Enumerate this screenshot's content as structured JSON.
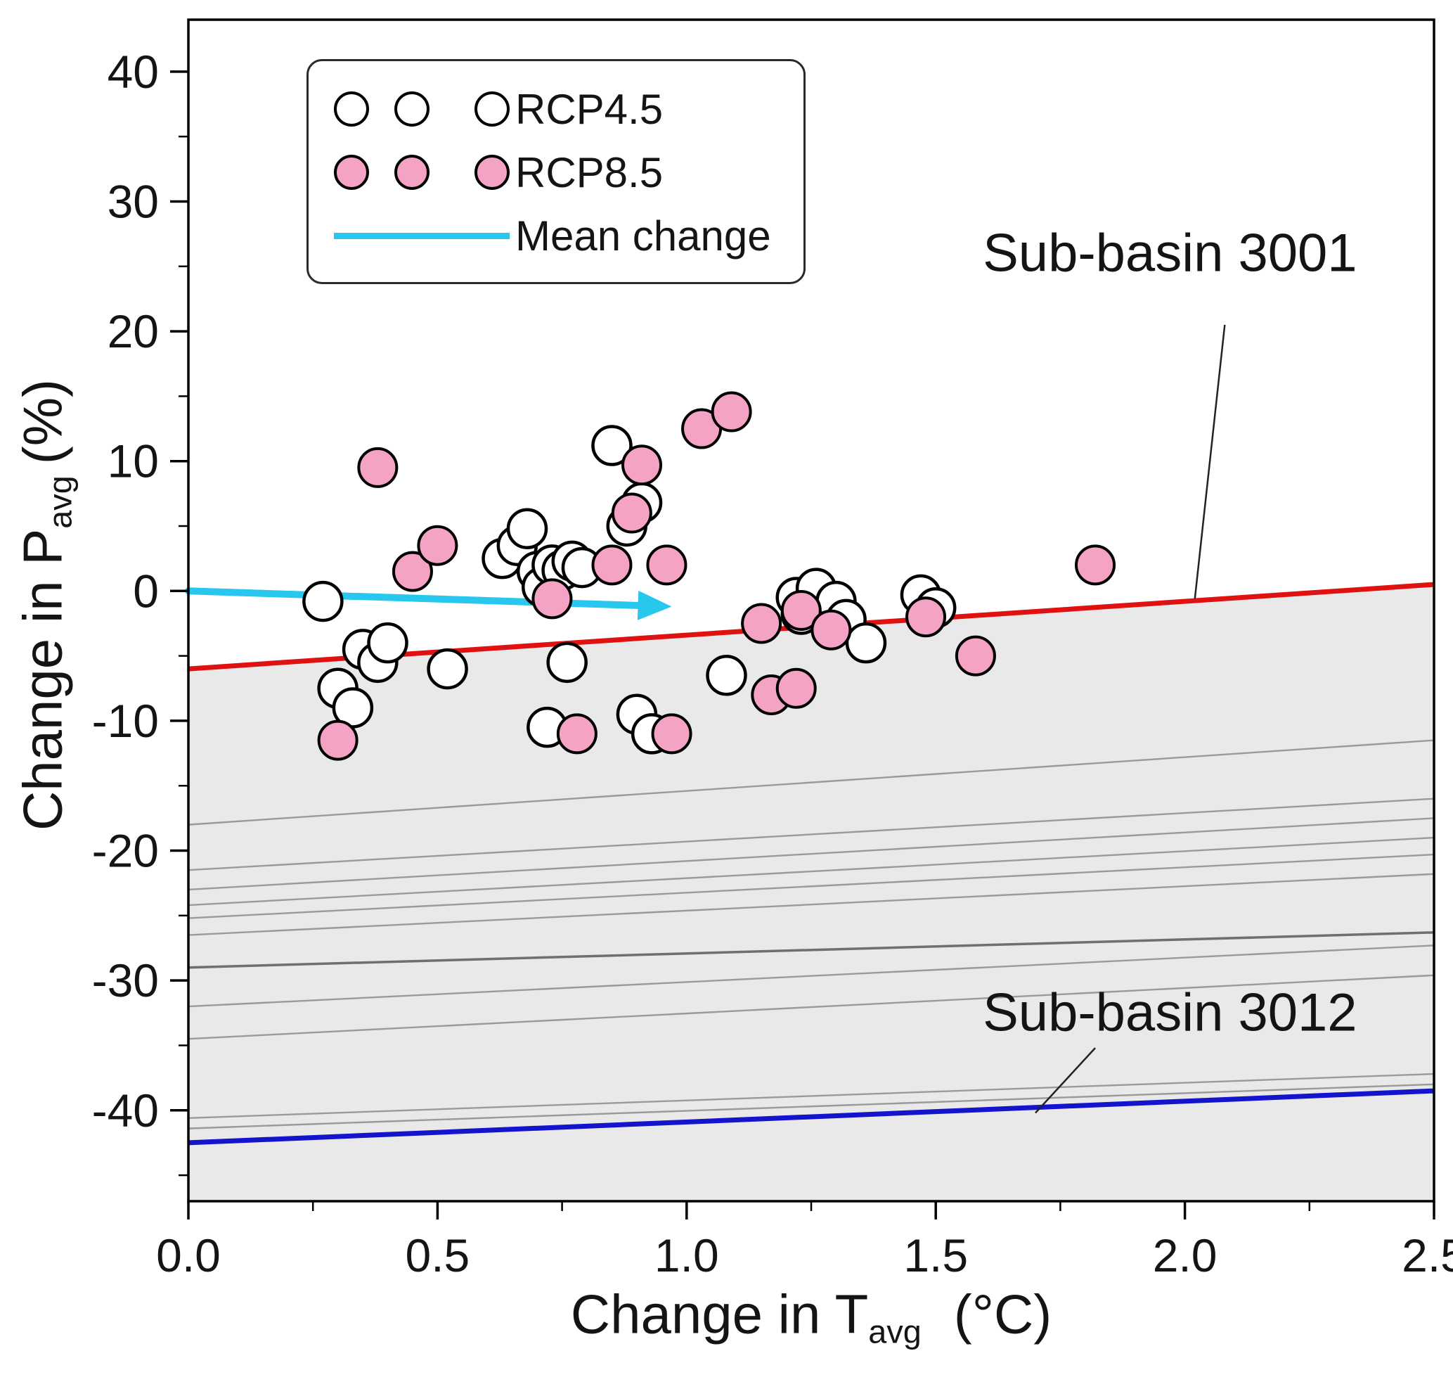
{
  "chart_data": {
    "type": "scatter",
    "title": "",
    "xlabel": {
      "main": "Change in T",
      "sub": "avg",
      "unit": "(°C)"
    },
    "ylabel": {
      "main": "Change in P",
      "sub": "avg",
      "unit": "(%)"
    },
    "xlim": [
      0.0,
      2.5
    ],
    "ylim": [
      -47,
      44
    ],
    "xticks": [
      0.0,
      0.5,
      1.0,
      1.5,
      2.0,
      2.5
    ],
    "xtick_labels": [
      "0.0",
      "0.5",
      "1.0",
      "1.5",
      "2.0",
      "2.5"
    ],
    "x_minor_ticks": [
      0.25,
      0.75,
      1.25,
      1.75,
      2.25
    ],
    "yticks": [
      -40,
      -30,
      -20,
      -10,
      0,
      10,
      20,
      30,
      40
    ],
    "ytick_labels": [
      "-40",
      "-30",
      "-20",
      "-10",
      "0",
      "10",
      "20",
      "30",
      "40"
    ],
    "y_minor_ticks": [
      -45,
      -35,
      -25,
      -15,
      -5,
      5,
      15,
      25,
      35
    ],
    "grid": false,
    "legend_position": "upper-left",
    "marker_radius_px": 27,
    "series": [
      {
        "id": "rcp45",
        "name": "RCP4.5",
        "marker": "open-circle",
        "fill": "#ffffff",
        "stroke": "#000000",
        "stroke_width": 4.5,
        "points": [
          [
            0.27,
            -0.8
          ],
          [
            0.3,
            -7.5
          ],
          [
            0.33,
            -9.0
          ],
          [
            0.35,
            -4.5
          ],
          [
            0.38,
            -5.5
          ],
          [
            0.4,
            -4.0
          ],
          [
            0.52,
            -6.0
          ],
          [
            0.63,
            2.5
          ],
          [
            0.66,
            3.5
          ],
          [
            0.68,
            4.8
          ],
          [
            0.7,
            1.5
          ],
          [
            0.71,
            0.3
          ],
          [
            0.73,
            2.0
          ],
          [
            0.75,
            1.6
          ],
          [
            0.77,
            2.3
          ],
          [
            0.79,
            1.8
          ],
          [
            0.76,
            -5.5
          ],
          [
            0.72,
            -10.5
          ],
          [
            0.85,
            11.2
          ],
          [
            0.88,
            5.0
          ],
          [
            0.91,
            6.8
          ],
          [
            0.9,
            -9.5
          ],
          [
            0.93,
            -11.0
          ],
          [
            1.08,
            -6.5
          ],
          [
            1.22,
            -0.5
          ],
          [
            1.23,
            -1.8
          ],
          [
            1.26,
            0.2
          ],
          [
            1.3,
            -0.8
          ],
          [
            1.32,
            -2.2
          ],
          [
            1.36,
            -4.0
          ],
          [
            1.47,
            -0.3
          ],
          [
            1.5,
            -1.3
          ]
        ]
      },
      {
        "id": "rcp85",
        "name": "RCP8.5",
        "marker": "filled-circle",
        "fill": "#f4a3c4",
        "stroke": "#000000",
        "stroke_width": 4,
        "points": [
          [
            0.3,
            -11.5
          ],
          [
            0.38,
            9.5
          ],
          [
            0.45,
            1.5
          ],
          [
            0.5,
            3.5
          ],
          [
            0.73,
            -0.6
          ],
          [
            0.78,
            -11.0
          ],
          [
            0.85,
            2.0
          ],
          [
            0.89,
            6.0
          ],
          [
            0.91,
            9.7
          ],
          [
            0.96,
            2.0
          ],
          [
            0.97,
            -11.0
          ],
          [
            1.03,
            12.5
          ],
          [
            1.09,
            13.8
          ],
          [
            1.15,
            -2.5
          ],
          [
            1.17,
            -8.0
          ],
          [
            1.22,
            -7.5
          ],
          [
            1.23,
            -1.5
          ],
          [
            1.29,
            -3.0
          ],
          [
            1.48,
            -2.0
          ],
          [
            1.58,
            -5.0
          ],
          [
            1.82,
            2.0
          ]
        ]
      }
    ],
    "mean_change": {
      "label": "Mean change",
      "color": "#27c7ee",
      "from": [
        0.0,
        0.0
      ],
      "to": [
        0.97,
        -1.2
      ]
    },
    "envelope": {
      "fill_color": "#e9e9e9",
      "top_line": {
        "label": "Sub-basin 3001",
        "color": "#e01111",
        "y_start": -6.0,
        "y_end": 0.5
      },
      "bottom_line": {
        "label": "Sub-basin 3012",
        "color": "#1414cf",
        "y_start": -42.5,
        "y_end": -38.5
      },
      "inner_lines": [
        {
          "y_start": -18.0,
          "y_end": -11.5
        },
        {
          "y_start": -21.5,
          "y_end": -16.0
        },
        {
          "y_start": -23.0,
          "y_end": -17.5
        },
        {
          "y_start": -24.2,
          "y_end": -19.0
        },
        {
          "y_start": -25.2,
          "y_end": -20.3
        },
        {
          "y_start": -26.5,
          "y_end": -21.8
        },
        {
          "y_start": -29.0,
          "y_end": -26.3,
          "emphasis": true
        },
        {
          "y_start": -32.0,
          "y_end": -27.3
        },
        {
          "y_start": -34.5,
          "y_end": -29.6
        },
        {
          "y_start": -40.6,
          "y_end": -37.2
        },
        {
          "y_start": -41.4,
          "y_end": -38.0
        }
      ]
    },
    "annotations": [
      {
        "text": "Sub-basin 3001",
        "x": 1.97,
        "y": 26.0,
        "pointer_from": [
          2.08,
          20.5
        ],
        "pointer_to": [
          2.02,
          -0.6
        ]
      },
      {
        "text": "Sub-basin 3012",
        "x": 1.97,
        "y": -32.5,
        "pointer_from": [
          1.82,
          -35.2
        ],
        "pointer_to": [
          1.7,
          -40.2
        ]
      }
    ]
  }
}
